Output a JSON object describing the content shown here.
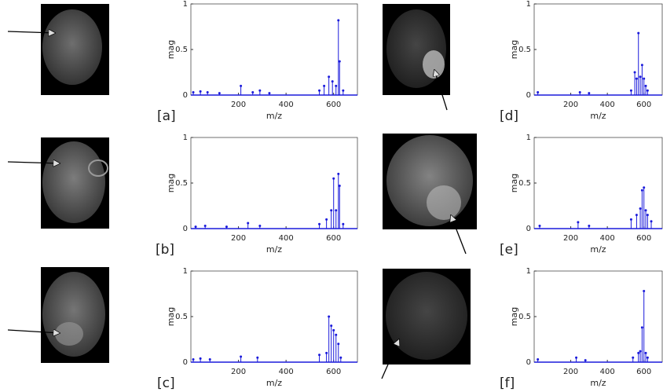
{
  "chart_data": [
    {
      "type": "stem",
      "label": "[a]",
      "xlabel": "m/z",
      "ylabel": "mag",
      "color": "#1a1adb",
      "x": [
        10,
        40,
        70,
        120,
        210,
        260,
        290,
        330,
        540,
        560,
        580,
        595,
        610,
        620,
        625,
        640
      ],
      "values": [
        0.03,
        0.04,
        0.03,
        0.02,
        0.1,
        0.03,
        0.05,
        0.02,
        0.05,
        0.1,
        0.2,
        0.15,
        0.1,
        0.82,
        0.37,
        0.05
      ],
      "xlim": [
        0,
        700
      ],
      "ylim": [
        0,
        1
      ],
      "xticks": [
        200,
        400,
        600
      ],
      "yticks": [
        0,
        0.5,
        1
      ]
    },
    {
      "type": "stem",
      "label": "[b]",
      "xlabel": "m/z",
      "ylabel": "mag",
      "color": "#1a1adb",
      "x": [
        20,
        60,
        150,
        240,
        290,
        540,
        570,
        590,
        600,
        610,
        620,
        625,
        640
      ],
      "values": [
        0.02,
        0.03,
        0.02,
        0.06,
        0.03,
        0.05,
        0.1,
        0.2,
        0.55,
        0.2,
        0.6,
        0.47,
        0.05
      ],
      "xlim": [
        0,
        700
      ],
      "ylim": [
        0,
        1
      ],
      "xticks": [
        200,
        400,
        600
      ],
      "yticks": [
        0,
        0.5,
        1
      ]
    },
    {
      "type": "stem",
      "label": "[c]",
      "xlabel": "m/z",
      "ylabel": "mag",
      "color": "#1a1adb",
      "x": [
        10,
        40,
        80,
        210,
        280,
        540,
        570,
        580,
        590,
        600,
        610,
        620,
        630
      ],
      "values": [
        0.03,
        0.04,
        0.03,
        0.06,
        0.05,
        0.08,
        0.1,
        0.5,
        0.4,
        0.35,
        0.3,
        0.2,
        0.05
      ],
      "xlim": [
        0,
        700
      ],
      "ylim": [
        0,
        1
      ],
      "xticks": [
        200,
        400,
        600
      ],
      "yticks": [
        0,
        0.5,
        1
      ]
    },
    {
      "type": "stem",
      "label": "[d]",
      "xlabel": "m/z",
      "ylabel": "mag",
      "color": "#1a1adb",
      "x": [
        20,
        250,
        300,
        530,
        550,
        560,
        570,
        580,
        590,
        600,
        610,
        620
      ],
      "values": [
        0.03,
        0.03,
        0.02,
        0.05,
        0.25,
        0.18,
        0.68,
        0.2,
        0.33,
        0.18,
        0.1,
        0.05
      ],
      "xlim": [
        0,
        700
      ],
      "ylim": [
        0,
        1
      ],
      "xticks": [
        200,
        400,
        600
      ],
      "yticks": [
        0,
        0.5,
        1
      ]
    },
    {
      "type": "stem",
      "label": "[e]",
      "xlabel": "m/z",
      "ylabel": "mag",
      "color": "#1a1adb",
      "x": [
        30,
        240,
        300,
        530,
        560,
        580,
        590,
        600,
        610,
        620,
        640
      ],
      "values": [
        0.03,
        0.07,
        0.03,
        0.1,
        0.15,
        0.22,
        0.42,
        0.45,
        0.2,
        0.15,
        0.08
      ],
      "xlim": [
        0,
        700
      ],
      "ylim": [
        0,
        1
      ],
      "xticks": [
        200,
        400,
        600
      ],
      "yticks": [
        0,
        0.5,
        1
      ]
    },
    {
      "type": "stem",
      "label": "[f]",
      "xlabel": "m/z",
      "ylabel": "mag",
      "color": "#1a1adb",
      "x": [
        20,
        230,
        280,
        540,
        570,
        580,
        590,
        600,
        610,
        620
      ],
      "values": [
        0.03,
        0.05,
        0.02,
        0.05,
        0.1,
        0.12,
        0.38,
        0.78,
        0.1,
        0.05
      ],
      "xlim": [
        0,
        700
      ],
      "ylim": [
        0,
        1
      ],
      "xticks": [
        200,
        400,
        600
      ],
      "yticks": [
        0,
        0.5,
        1
      ]
    }
  ]
}
